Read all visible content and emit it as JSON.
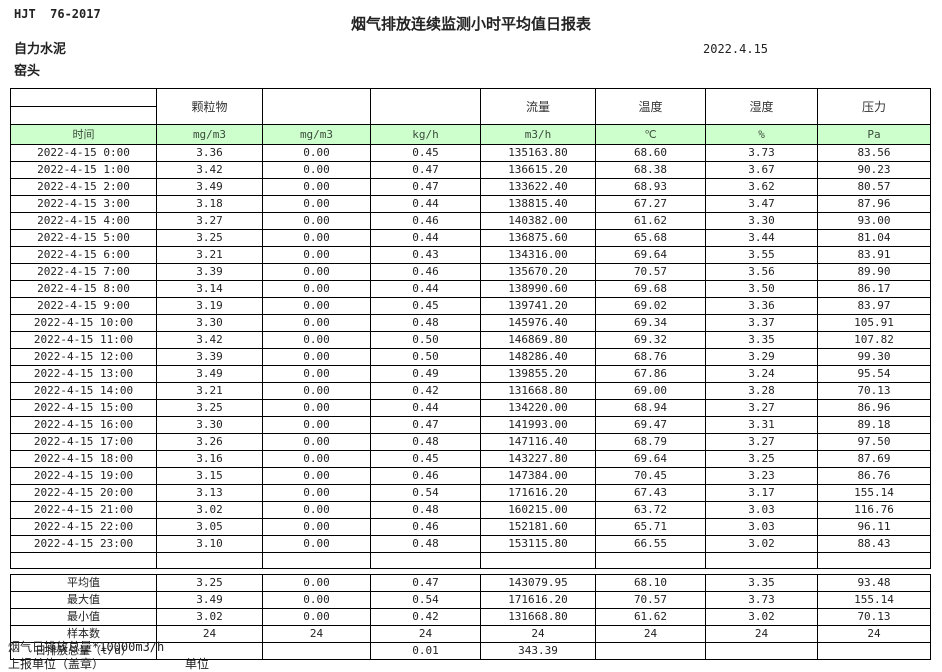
{
  "header": {
    "doc_code": "HJT  76-2017",
    "title": "烟气排放连续监测小时平均值日报表",
    "date": "2022.4.15",
    "company": "自力水泥",
    "location": "窑头"
  },
  "table": {
    "group_headers": [
      "",
      "颗粒物",
      "",
      "",
      "流量",
      "温度",
      "湿度",
      "压力"
    ],
    "unit_row": [
      "时间",
      "mg/m3",
      "mg/m3",
      "kg/h",
      "m3/h",
      "℃",
      "%",
      "Pa"
    ],
    "rows": [
      [
        "2022-4-15 0:00",
        "3.36",
        "0.00",
        "0.45",
        "135163.80",
        "68.60",
        "3.73",
        "83.56"
      ],
      [
        "2022-4-15 1:00",
        "3.42",
        "0.00",
        "0.47",
        "136615.20",
        "68.38",
        "3.67",
        "90.23"
      ],
      [
        "2022-4-15 2:00",
        "3.49",
        "0.00",
        "0.47",
        "133622.40",
        "68.93",
        "3.62",
        "80.57"
      ],
      [
        "2022-4-15 3:00",
        "3.18",
        "0.00",
        "0.44",
        "138815.40",
        "67.27",
        "3.47",
        "87.96"
      ],
      [
        "2022-4-15 4:00",
        "3.27",
        "0.00",
        "0.46",
        "140382.00",
        "61.62",
        "3.30",
        "93.00"
      ],
      [
        "2022-4-15 5:00",
        "3.25",
        "0.00",
        "0.44",
        "136875.60",
        "65.68",
        "3.44",
        "81.04"
      ],
      [
        "2022-4-15 6:00",
        "3.21",
        "0.00",
        "0.43",
        "134316.00",
        "69.64",
        "3.55",
        "83.91"
      ],
      [
        "2022-4-15 7:00",
        "3.39",
        "0.00",
        "0.46",
        "135670.20",
        "70.57",
        "3.56",
        "89.90"
      ],
      [
        "2022-4-15 8:00",
        "3.14",
        "0.00",
        "0.44",
        "138990.60",
        "69.68",
        "3.50",
        "86.17"
      ],
      [
        "2022-4-15 9:00",
        "3.19",
        "0.00",
        "0.45",
        "139741.20",
        "69.02",
        "3.36",
        "83.97"
      ],
      [
        "2022-4-15 10:00",
        "3.30",
        "0.00",
        "0.48",
        "145976.40",
        "69.34",
        "3.37",
        "105.91"
      ],
      [
        "2022-4-15 11:00",
        "3.42",
        "0.00",
        "0.50",
        "146869.80",
        "69.32",
        "3.35",
        "107.82"
      ],
      [
        "2022-4-15 12:00",
        "3.39",
        "0.00",
        "0.50",
        "148286.40",
        "68.76",
        "3.29",
        "99.30"
      ],
      [
        "2022-4-15 13:00",
        "3.49",
        "0.00",
        "0.49",
        "139855.20",
        "67.86",
        "3.24",
        "95.54"
      ],
      [
        "2022-4-15 14:00",
        "3.21",
        "0.00",
        "0.42",
        "131668.80",
        "69.00",
        "3.28",
        "70.13"
      ],
      [
        "2022-4-15 15:00",
        "3.25",
        "0.00",
        "0.44",
        "134220.00",
        "68.94",
        "3.27",
        "86.96"
      ],
      [
        "2022-4-15 16:00",
        "3.30",
        "0.00",
        "0.47",
        "141993.00",
        "69.47",
        "3.31",
        "89.18"
      ],
      [
        "2022-4-15 17:00",
        "3.26",
        "0.00",
        "0.48",
        "147116.40",
        "68.79",
        "3.27",
        "97.50"
      ],
      [
        "2022-4-15 18:00",
        "3.16",
        "0.00",
        "0.45",
        "143227.80",
        "69.64",
        "3.25",
        "87.69"
      ],
      [
        "2022-4-15 19:00",
        "3.15",
        "0.00",
        "0.46",
        "147384.00",
        "70.45",
        "3.23",
        "86.76"
      ],
      [
        "2022-4-15 20:00",
        "3.13",
        "0.00",
        "0.54",
        "171616.20",
        "67.43",
        "3.17",
        "155.14"
      ],
      [
        "2022-4-15 21:00",
        "3.02",
        "0.00",
        "0.48",
        "160215.00",
        "63.72",
        "3.03",
        "116.76"
      ],
      [
        "2022-4-15 22:00",
        "3.05",
        "0.00",
        "0.46",
        "152181.60",
        "65.71",
        "3.03",
        "96.11"
      ],
      [
        "2022-4-15 23:00",
        "3.10",
        "0.00",
        "0.48",
        "153115.80",
        "66.55",
        "3.02",
        "88.43"
      ]
    ],
    "summary_rows": [
      [
        "平均值",
        "3.25",
        "0.00",
        "0.47",
        "143079.95",
        "68.10",
        "3.35",
        "93.48"
      ],
      [
        "最大值",
        "3.49",
        "0.00",
        "0.54",
        "171616.20",
        "70.57",
        "3.73",
        "155.14"
      ],
      [
        "最小值",
        "3.02",
        "0.00",
        "0.42",
        "131668.80",
        "61.62",
        "3.02",
        "70.13"
      ],
      [
        "样本数",
        "24",
        "24",
        "24",
        "24",
        "24",
        "24",
        "24"
      ],
      [
        "日排放总量（t/d）",
        "",
        "",
        "0.01",
        "343.39",
        "",
        "",
        ""
      ]
    ]
  },
  "footer": {
    "note": "烟气日排放总量*10000m3/h",
    "report_unit_label": "上报单位（盖章）",
    "unit_label": "单位"
  },
  "colors": {
    "unit_row_green": "#ccffcc",
    "border": "#000000"
  }
}
